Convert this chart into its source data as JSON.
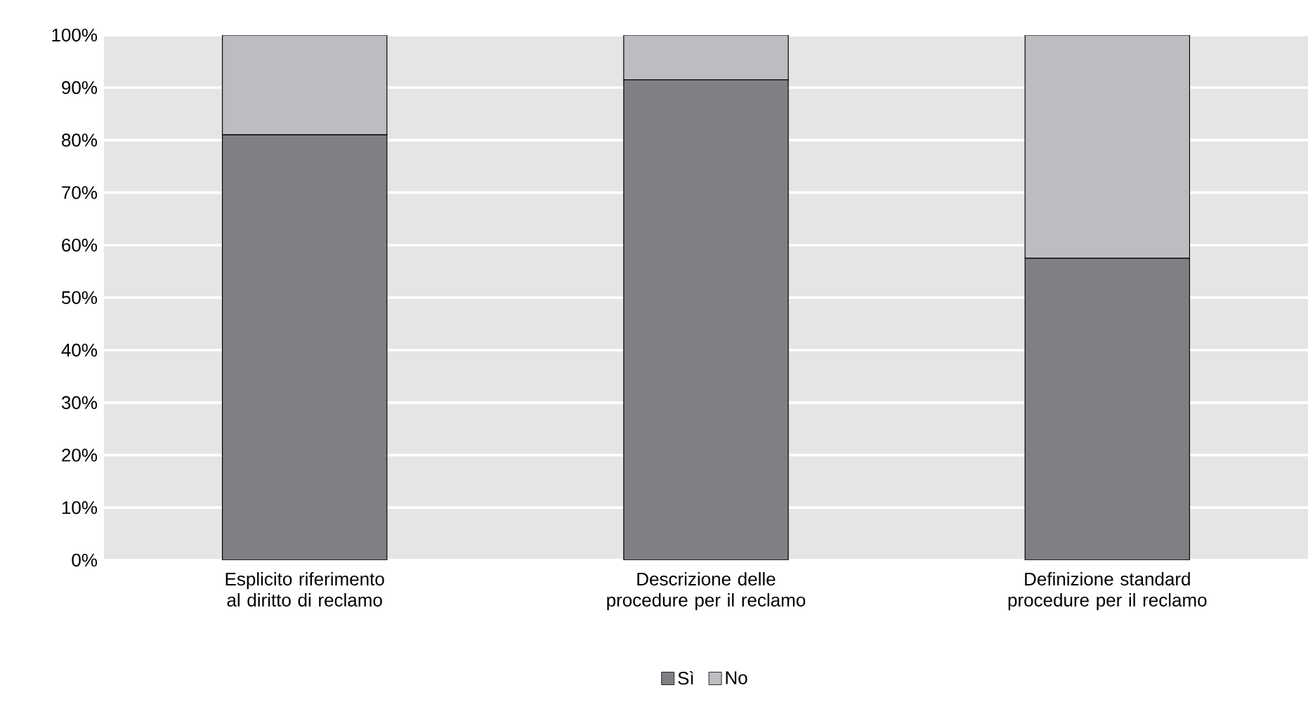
{
  "chart_data": {
    "type": "bar",
    "stacked": true,
    "categories": [
      "Esplicito riferimento al diritto di reclamo",
      "Descrizione delle procedure per il reclamo",
      "Definizione standard procedure per il reclamo"
    ],
    "series": [
      {
        "name": "Sì",
        "color": "#808084",
        "values": [
          81,
          91.5,
          57.5
        ]
      },
      {
        "name": "No",
        "color": "#bcbdc1",
        "values": [
          19,
          8.5,
          42.5
        ]
      }
    ],
    "ylim": [
      0,
      100
    ],
    "yticks": [
      {
        "value": 0,
        "label": "0%"
      },
      {
        "value": 10,
        "label": "10%"
      },
      {
        "value": 20,
        "label": "20%"
      },
      {
        "value": 30,
        "label": "30%"
      },
      {
        "value": 40,
        "label": "40%"
      },
      {
        "value": 50,
        "label": "50%"
      },
      {
        "value": 60,
        "label": "60%"
      },
      {
        "value": 70,
        "label": "70%"
      },
      {
        "value": 80,
        "label": "80%"
      },
      {
        "value": 90,
        "label": "90%"
      },
      {
        "value": 100,
        "label": "100%"
      }
    ],
    "grid": "y",
    "legend": "bottom"
  }
}
